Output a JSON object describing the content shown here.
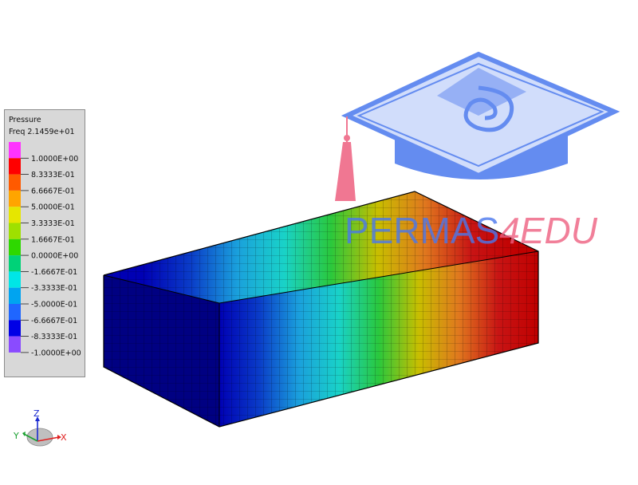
{
  "legend": {
    "title": "Pressure",
    "subtitle": "Freq 2.1459e+01",
    "colors": [
      "#ff33ff",
      "#ff0000",
      "#ff5a00",
      "#ffa500",
      "#e6e600",
      "#9fe000",
      "#2ed800",
      "#00d278",
      "#00e6e6",
      "#00a4f0",
      "#1f66ff",
      "#0000e6",
      "#8a4bff"
    ],
    "labels": [
      "1.0000E+00",
      "8.3333E-01",
      "6.6667E-01",
      "5.0000E-01",
      "3.3333E-01",
      "1.6667E-01",
      "0.0000E+00",
      "-1.6667E-01",
      "-3.3333E-01",
      "-5.0000E-01",
      "-6.6667E-01",
      "-8.3333E-01",
      "-1.0000E+00"
    ]
  },
  "model": {
    "gradient_colors": [
      "#0000b4",
      "#0a3cc8",
      "#1aa0dc",
      "#19d2c8",
      "#2ac83c",
      "#c8be00",
      "#e0781e",
      "#c81414",
      "#c00000"
    ]
  },
  "watermark": {
    "brand_part1": "PERMAS",
    "brand_part2": "4EDU",
    "color1": "#4a78ee",
    "color2": "#ee6080"
  },
  "triad": {
    "z": "Z",
    "y": "Y",
    "x": "X"
  }
}
